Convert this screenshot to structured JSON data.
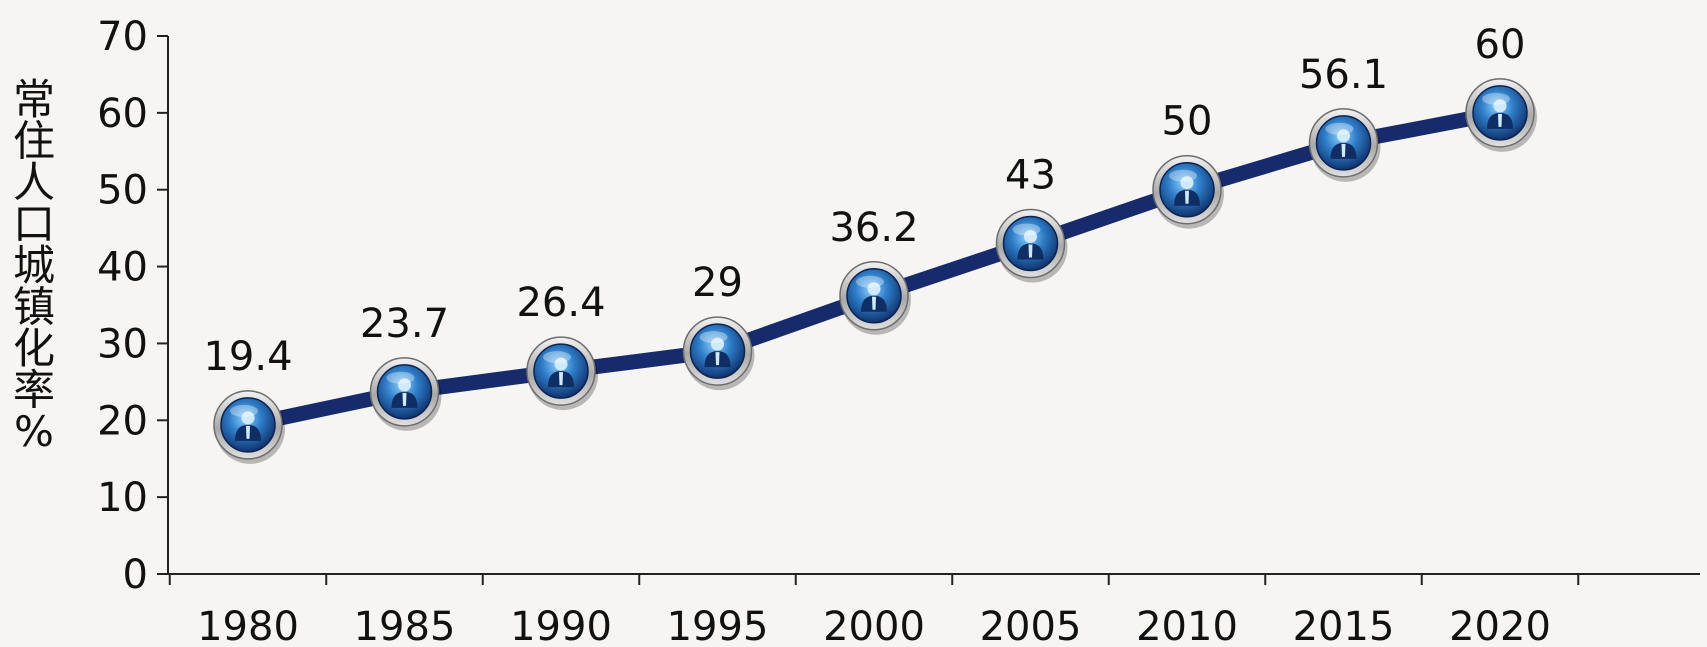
{
  "chart_data": {
    "type": "line",
    "ylabel": "常住人口城镇化率%",
    "ylabel_chars": [
      "常",
      "住",
      "人",
      "口",
      "城",
      "镇",
      "化",
      "率",
      "%"
    ],
    "ylim": [
      0,
      70
    ],
    "yticks": [
      "0",
      "10",
      "20",
      "30",
      "40",
      "50",
      "60",
      "70"
    ],
    "categories": [
      "1980",
      "1985",
      "1990",
      "1995",
      "2000",
      "2005",
      "2010",
      "2015",
      "2020"
    ],
    "values": [
      19.4,
      23.7,
      26.4,
      29,
      36.2,
      43,
      50,
      56.1,
      60
    ],
    "data_labels": [
      "19.4",
      "23.7",
      "26.4",
      "29",
      "36.2",
      "43",
      "50",
      "56.1",
      "60"
    ],
    "highlight_index": 8,
    "grid": false,
    "colors": {
      "line": "#172a6b",
      "highlight_label": "#c0141a",
      "label": "#111111",
      "axis": "#222222",
      "marker_ring": "#c8c8c8",
      "marker_fill": "#2b6fb8"
    },
    "marker_icon": "person-icon"
  }
}
